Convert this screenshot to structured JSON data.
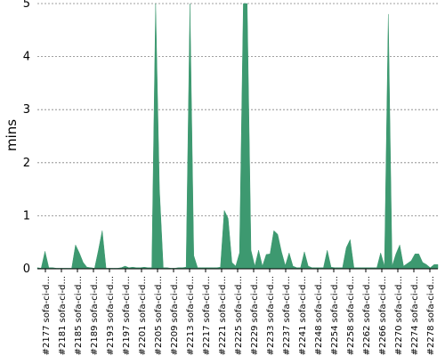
{
  "colors": {
    "area": "#3d9970",
    "grid": "#808080",
    "axis": "#000000"
  },
  "chart_data": {
    "type": "area",
    "title": "",
    "xlabel": "",
    "ylabel": "mins",
    "ylim": [
      0,
      5
    ],
    "yticks": [
      0,
      1,
      2,
      3,
      4,
      5
    ],
    "grid": "horizontal dashed",
    "legend": "none",
    "x_labels": [
      "#2177 sofa-ci-d...",
      "#2181 sofa-ci-d...",
      "#2185 sofa-ci-d...",
      "#2189 sofa-ci-d...",
      "#2193 sofa-ci-d...",
      "#2197 sofa-ci-d...",
      "#2201 sofa-ci-d...",
      "#2205 sofa-ci-d...",
      "#2209 sofa-ci-d...",
      "#2213 sofa-ci-d...",
      "#2217 sofa-ci-d...",
      "#2221 sofa-ci-d...",
      "#2225 sofa-ci-d...",
      "#2229 sofa-ci-d...",
      "#2233 sofa-ci-d...",
      "#2237 sofa-ci-d...",
      "#2241 sofa-ci-d...",
      "#2248 sofa-ci-d...",
      "#2254 sofa-ci-d...",
      "#2258 sofa-ci-d...",
      "#2262 sofa-ci-d...",
      "#2266 sofa-ci-d...",
      "#2270 sofa-ci-d...",
      "#2274 sofa-ci-d...",
      "#2278 sofa-ci-d..."
    ],
    "series": [
      {
        "values": [
          0.02,
          0.01,
          0.33,
          0.02,
          0.02,
          0.01,
          0.01,
          0.01,
          0.01,
          0.01,
          0.45,
          0.3,
          0.12,
          0.03,
          0.02,
          0.01,
          0.35,
          0.72,
          0.01,
          0.01,
          0.01,
          0.01,
          0.02,
          0.05,
          0.02,
          0.03,
          0.02,
          0.02,
          0.03,
          0.02,
          0.02,
          5.0,
          1.5,
          0.02,
          0.02,
          0.01,
          0.01,
          0.02,
          0.02,
          0.03,
          5.0,
          0.25,
          0.02,
          0.02,
          0.02,
          0.02,
          0.02,
          0.02,
          0.03,
          1.1,
          0.95,
          0.12,
          0.05,
          0.3,
          5.0,
          5.0,
          0.35,
          0.05,
          0.35,
          0.05,
          0.27,
          0.28,
          0.72,
          0.65,
          0.32,
          0.06,
          0.3,
          0.05,
          0.02,
          0.02,
          0.32,
          0.05,
          0.02,
          0.02,
          0.02,
          0.02,
          0.35,
          0.03,
          0.02,
          0.02,
          0.02,
          0.4,
          0.55,
          0.02,
          0.02,
          0.02,
          0.02,
          0.02,
          0.02,
          0.02,
          0.3,
          0.05,
          4.8,
          0.05,
          0.28,
          0.45,
          0.05,
          0.1,
          0.15,
          0.28,
          0.28,
          0.12,
          0.08,
          0.02,
          0.08,
          0.08
        ]
      }
    ]
  }
}
